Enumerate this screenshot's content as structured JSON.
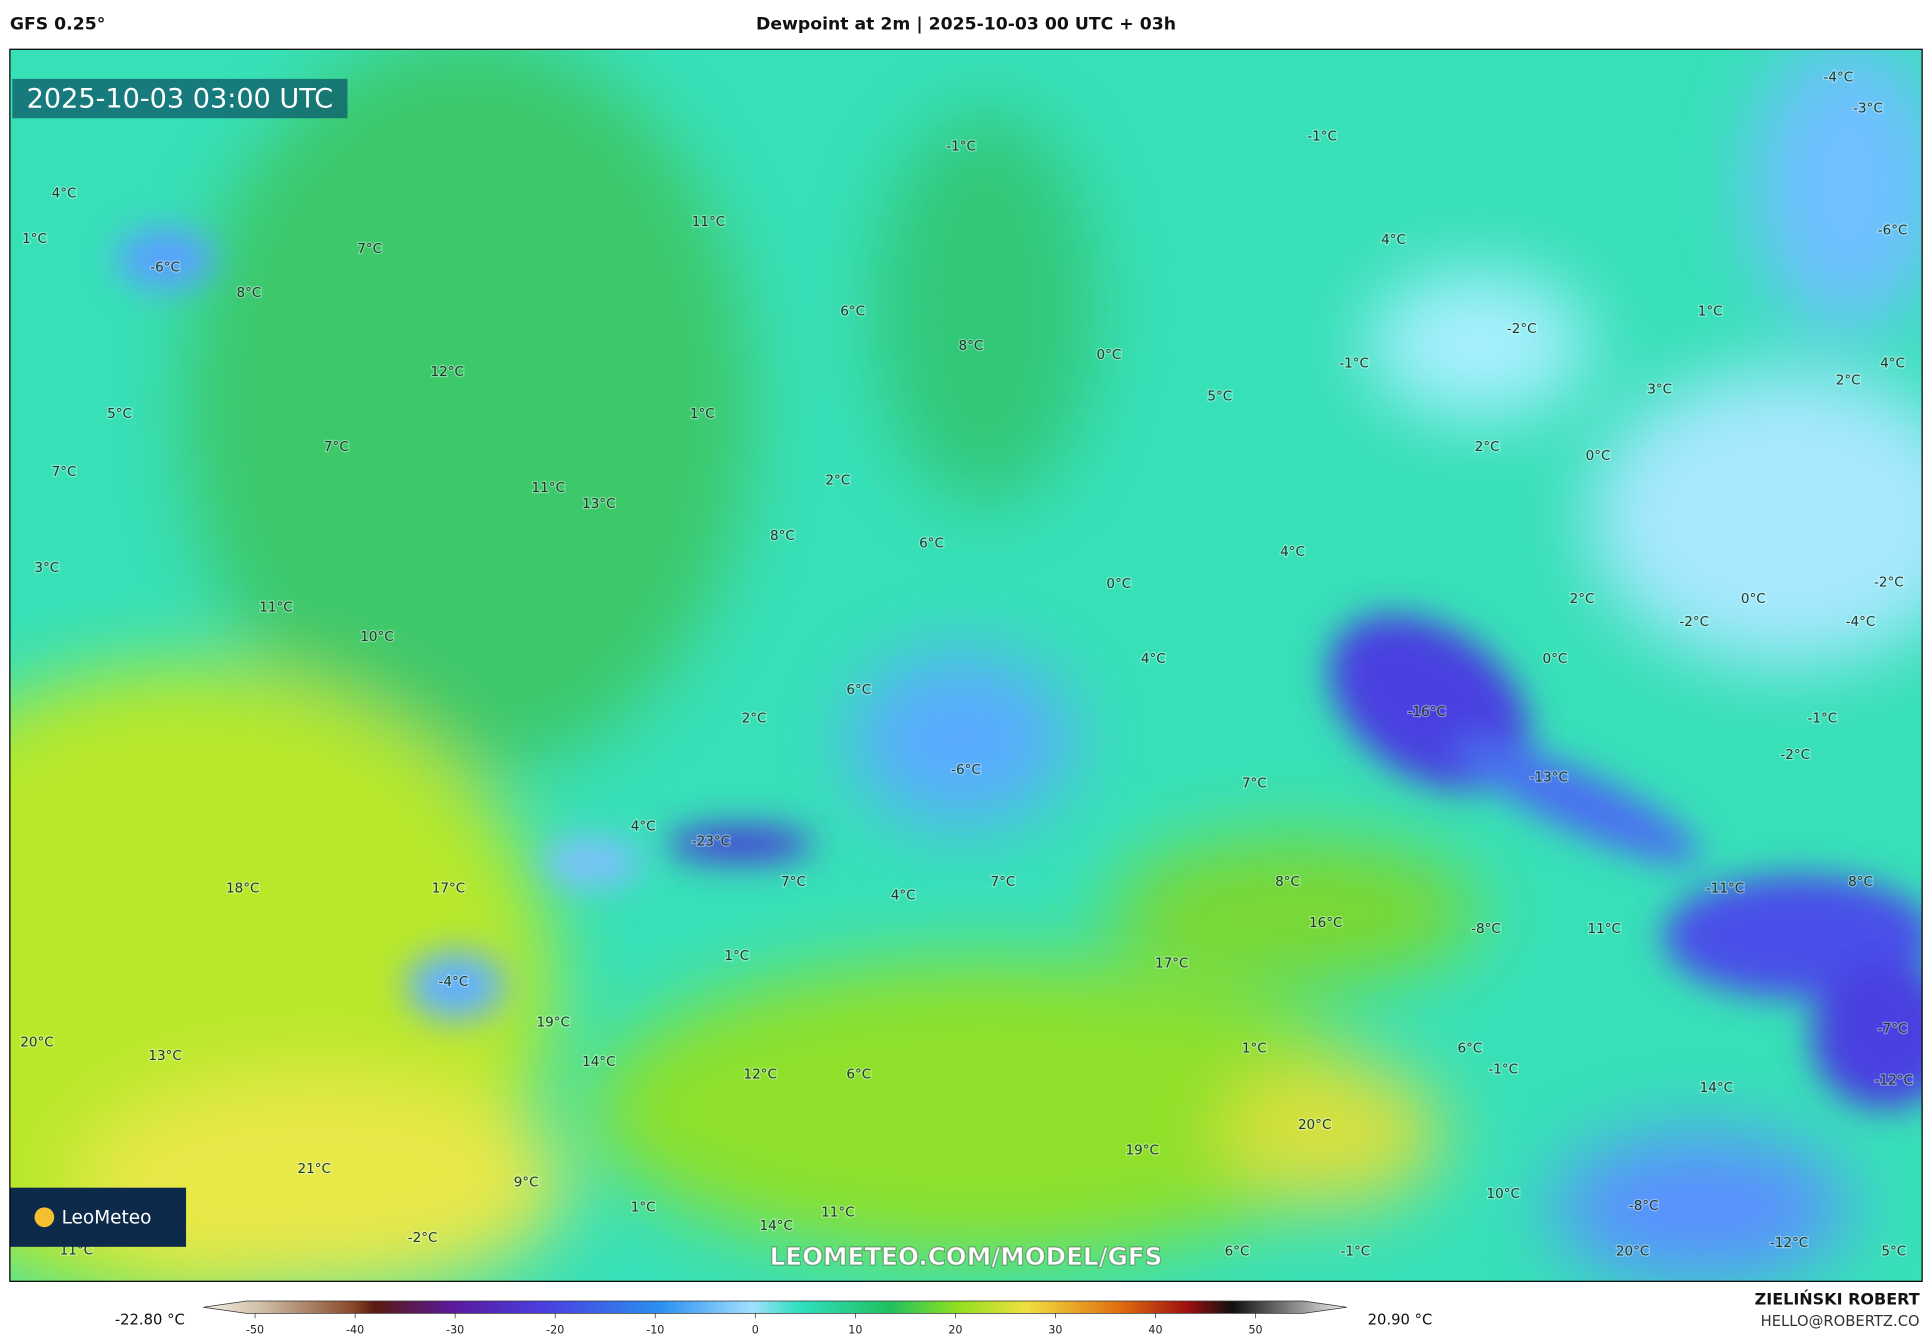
{
  "header": {
    "model": "GFS 0.25°",
    "title": "Dewpoint at 2m | 2025-10-03 00 UTC + 03h"
  },
  "map": {
    "timestamp": "2025-10-03 03:00 UTC",
    "logo": "LeoMeteo",
    "watermark": "LEOMETEO.COM/MODEL/GFS",
    "labels": [
      "4°C",
      "1°C",
      "-6°C",
      "7°C",
      "8°C",
      "11°C",
      "-1°C",
      "-1°C",
      "-4°C",
      "-3°C",
      "-6°C",
      "4°C",
      "6°C",
      "8°C",
      "0°C",
      "-2°C",
      "1°C",
      "-1°C",
      "12°C",
      "5°C",
      "1°C",
      "5°C",
      "3°C",
      "2°C",
      "4°C",
      "7°C",
      "7°C",
      "2°C",
      "0°C",
      "2°C",
      "11°C",
      "13°C",
      "8°C",
      "6°C",
      "4°C",
      "3°C",
      "0°C",
      "2°C",
      "0°C",
      "-2°C",
      "-2°C",
      "-4°C",
      "11°C",
      "10°C",
      "4°C",
      "0°C",
      "2°C",
      "6°C",
      "-16°C",
      "-1°C",
      "-2°C",
      "-6°C",
      "7°C",
      "-13°C",
      "4°C",
      "-23°C",
      "8°C",
      "18°C",
      "17°C",
      "7°C",
      "4°C",
      "7°C",
      "-11°C",
      "8°C",
      "16°C",
      "-8°C",
      "11°C",
      "1°C",
      "17°C",
      "-4°C",
      "19°C",
      "-7°C",
      "20°C",
      "13°C",
      "14°C",
      "1°C",
      "6°C",
      "-1°C",
      "12°C",
      "6°C",
      "14°C",
      "-12°C",
      "20°C",
      "19°C",
      "21°C",
      "9°C",
      "10°C",
      "1°C",
      "11°C",
      "14°C",
      "-8°C",
      "-2°C",
      "-12°C",
      "11°C",
      "-1°C",
      "6°C",
      "20°C",
      "5°C"
    ]
  },
  "colorbar": {
    "min_label": "-22.80 °C",
    "max_label": "20.90 °C",
    "ticks": [
      -50,
      -40,
      -30,
      -20,
      -10,
      0,
      10,
      20,
      30,
      40,
      50
    ]
  },
  "credits": {
    "author": "ZIELIŃSKI ROBERT",
    "contact": "HELLO@ROBERTZ.CO"
  }
}
